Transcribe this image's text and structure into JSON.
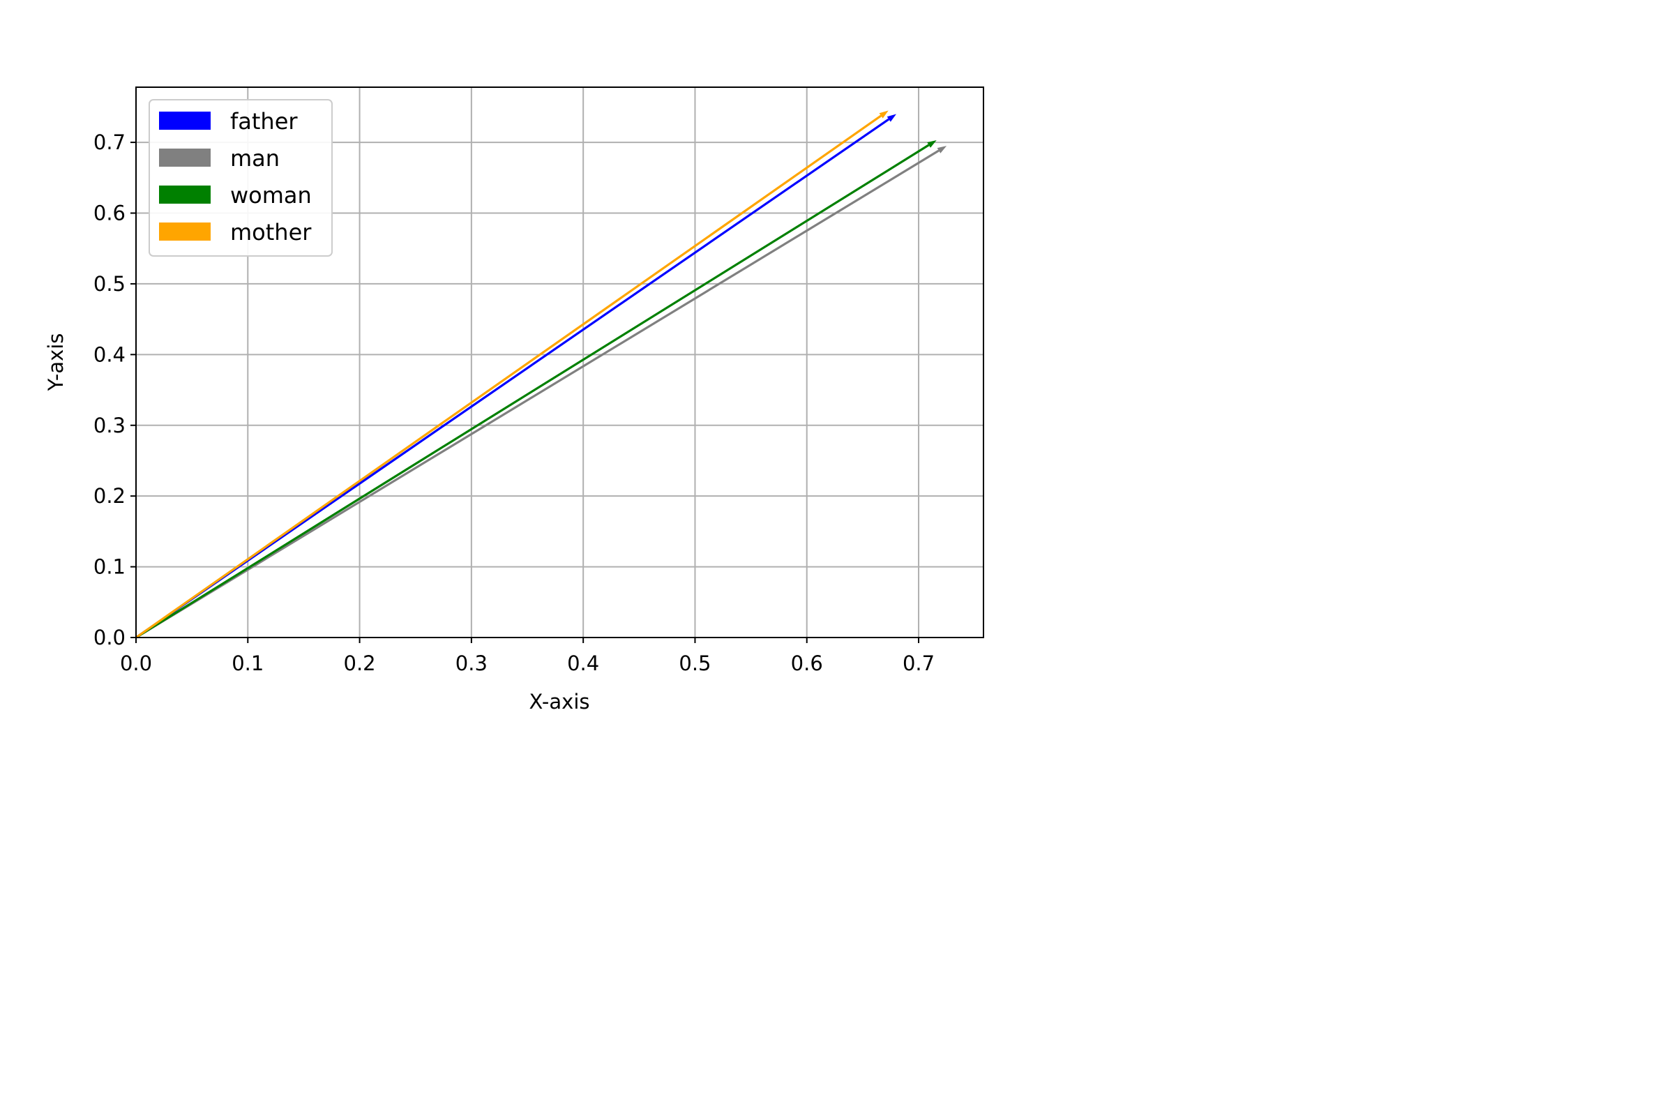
{
  "chart_data": {
    "type": "vector",
    "title": "",
    "xlabel": "X-axis",
    "ylabel": "Y-axis",
    "xlim": [
      0,
      0.758
    ],
    "ylim": [
      0,
      0.778
    ],
    "xticks": [
      0.0,
      0.1,
      0.2,
      0.3,
      0.4,
      0.5,
      0.6,
      0.7
    ],
    "yticks": [
      0.0,
      0.1,
      0.2,
      0.3,
      0.4,
      0.5,
      0.6,
      0.7
    ],
    "xtick_labels": [
      "0.0",
      "0.1",
      "0.2",
      "0.3",
      "0.4",
      "0.5",
      "0.6",
      "0.7"
    ],
    "ytick_labels": [
      "0.0",
      "0.1",
      "0.2",
      "0.3",
      "0.4",
      "0.5",
      "0.6",
      "0.7"
    ],
    "grid": true,
    "legend_position": "top-left",
    "series": [
      {
        "name": "father",
        "color": "#0000ff",
        "x": [
          0,
          0.68
        ],
        "y": [
          0,
          0.74
        ]
      },
      {
        "name": "man",
        "color": "#808080",
        "x": [
          0,
          0.725
        ],
        "y": [
          0,
          0.695
        ]
      },
      {
        "name": "woman",
        "color": "#008000",
        "x": [
          0,
          0.716
        ],
        "y": [
          0,
          0.703
        ]
      },
      {
        "name": "mother",
        "color": "#ffa500",
        "x": [
          0,
          0.673
        ],
        "y": [
          0,
          0.745
        ]
      }
    ]
  }
}
